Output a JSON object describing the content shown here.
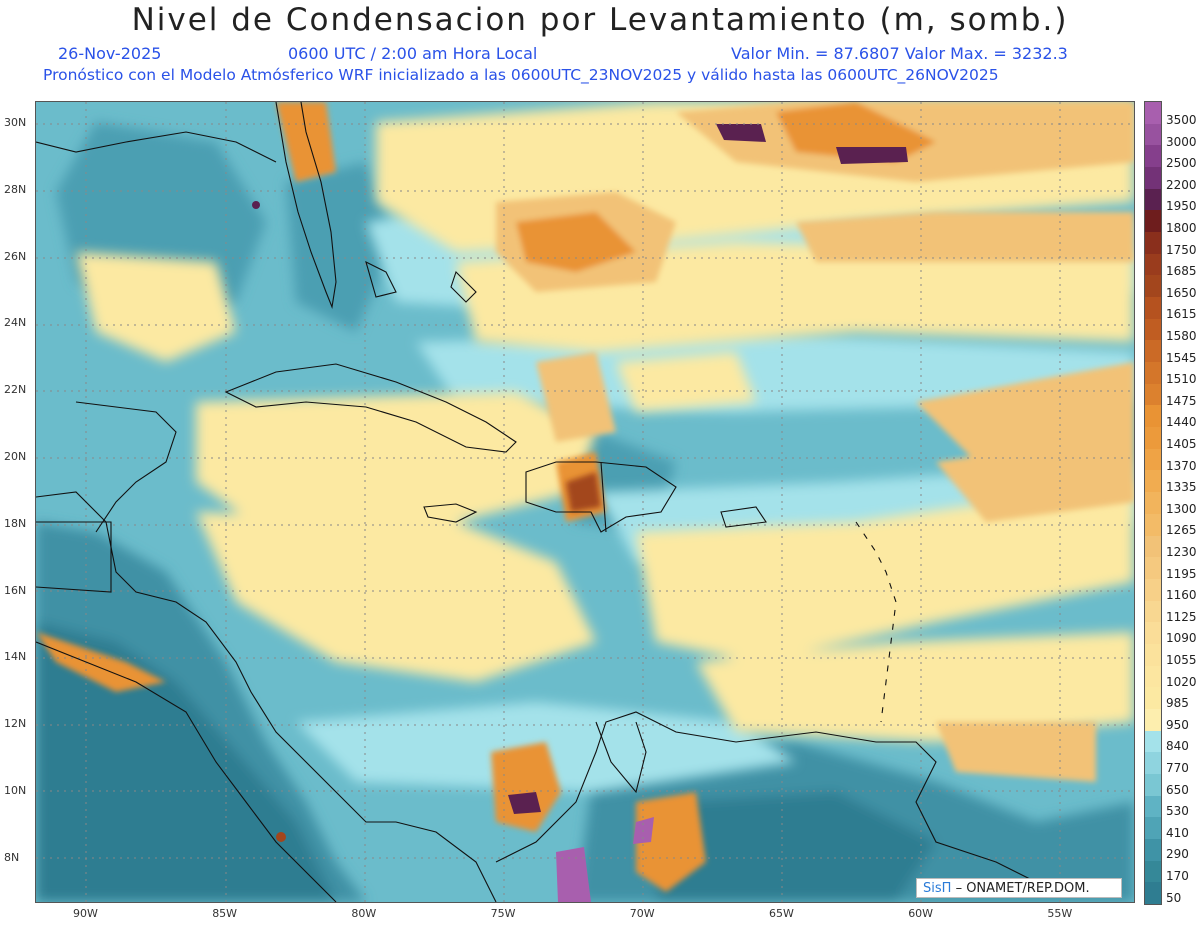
{
  "header": {
    "title": "Nivel de Condensacion por Levantamiento (m, somb.)",
    "date": "26-Nov-2025",
    "time": "0600 UTC / 2:00 am Hora Local",
    "minmax": "Valor Min. = 87.6807  Valor Max. = 3232.3",
    "forecast_note": "Pronóstico con el Modelo Atmósferico WRF inicializado a las 0600UTC_23NOV2025 y válido hasta las  0600UTC_26NOV2025"
  },
  "map": {
    "lat_labels": [
      "30N",
      "28N",
      "26N",
      "24N",
      "22N",
      "20N",
      "18N",
      "16N",
      "14N",
      "12N",
      "10N",
      "8N"
    ],
    "lon_labels": [
      "90W",
      "85W",
      "80W",
      "75W",
      "70W",
      "65W",
      "60W",
      "55W"
    ]
  },
  "legend": {
    "levels": [
      "3500",
      "3000",
      "2500",
      "2200",
      "1950",
      "1800",
      "1750",
      "1685",
      "1650",
      "1615",
      "1580",
      "1545",
      "1510",
      "1475",
      "1440",
      "1405",
      "1370",
      "1335",
      "1300",
      "1265",
      "1230",
      "1195",
      "1160",
      "1125",
      "1090",
      "1055",
      "1020",
      "985",
      "950",
      "840",
      "770",
      "650",
      "530",
      "410",
      "290",
      "170",
      "50"
    ],
    "colors": {
      "high_purple": "#a85fae",
      "dark_purple": "#5a2150",
      "brown": "#a3461d",
      "orange": "#e99334",
      "light_orange": "#f2c277",
      "pale_yellow": "#fce9a2",
      "light_cyan": "#a4e2ea",
      "teal": "#5fb3c4",
      "dark_teal": "#2f7d91"
    }
  },
  "credit": {
    "logo": "SisΠ",
    "org": "– ONAMET/REP.DOM."
  }
}
